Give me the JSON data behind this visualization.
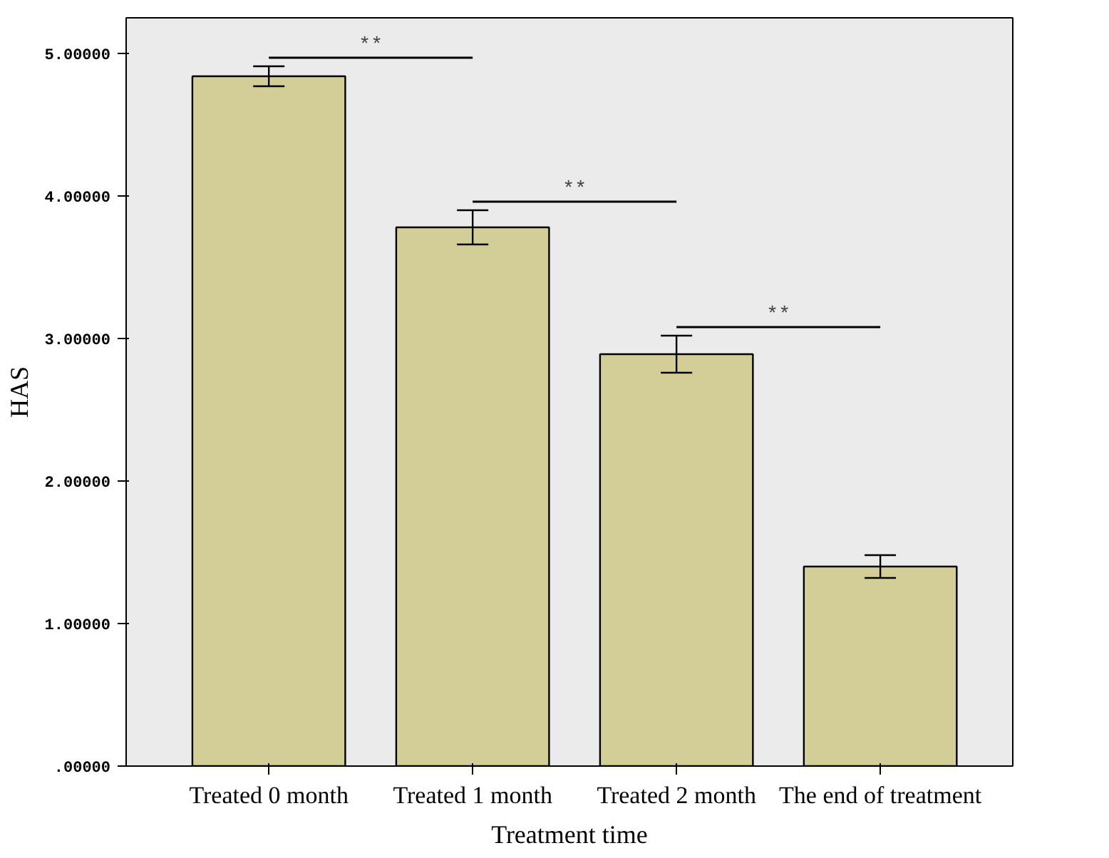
{
  "chart_data": {
    "type": "bar",
    "xlabel": "Treatment time",
    "ylabel": "HAS",
    "categories": [
      "Treated 0 month",
      "Treated 1 month",
      "Treated 2 month",
      "The end of treatment"
    ],
    "values": [
      4.84,
      3.78,
      2.89,
      1.4
    ],
    "errors": [
      0.07,
      0.12,
      0.13,
      0.08
    ],
    "color": "#d3ce97",
    "ylim": [
      0,
      5.25
    ],
    "yticks": [
      {
        "value": 0,
        "label": ".00000"
      },
      {
        "value": 1,
        "label": "1.00000"
      },
      {
        "value": 2,
        "label": "2.00000"
      },
      {
        "value": 3,
        "label": "3.00000"
      },
      {
        "value": 4,
        "label": "4.00000"
      },
      {
        "value": 5,
        "label": "5.00000"
      }
    ],
    "annotations": [
      "**",
      "**",
      "**"
    ],
    "grid": false
  }
}
